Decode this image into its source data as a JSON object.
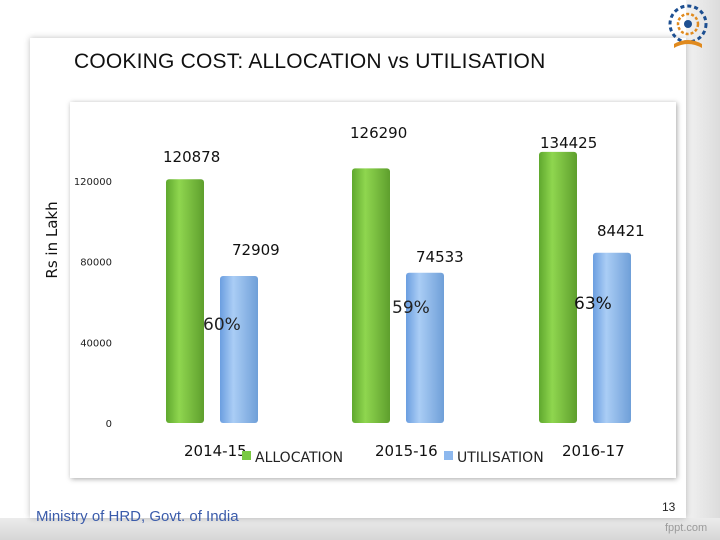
{
  "slide": {
    "title": "COOKING COST: ALLOCATION vs UTILISATION",
    "footer": "Ministry of HRD, Govt. of India",
    "page_number": "13",
    "watermark": "fppt.com"
  },
  "colors": {
    "allocation": "#7ac943",
    "utilisation": "#8db8ee"
  },
  "icons": {
    "logo": "mhrd-emblem-icon"
  },
  "chart_data": {
    "type": "bar",
    "categories": [
      "2014-15",
      "2015-16",
      "2016-17"
    ],
    "series": [
      {
        "name": "ALLOCATION",
        "values": [
          120878,
          126290,
          134425
        ]
      },
      {
        "name": "UTILISATION",
        "values": [
          72909,
          74533,
          84421
        ]
      }
    ],
    "value_labels": {
      "ALLOCATION": [
        "120878",
        "126290",
        "134425"
      ],
      "UTILISATION": [
        "72909",
        "74533",
        "84421"
      ]
    },
    "percent_labels": [
      "60%",
      "59%",
      "63%"
    ],
    "yticks": [
      "0",
      "40000",
      "80000",
      "120000"
    ],
    "ytick_values": [
      0,
      40000,
      80000,
      120000
    ],
    "ylabel": "Rs in Lakh",
    "ylim": [
      0,
      120000
    ],
    "grid": false,
    "legend": "bottom-inline"
  }
}
